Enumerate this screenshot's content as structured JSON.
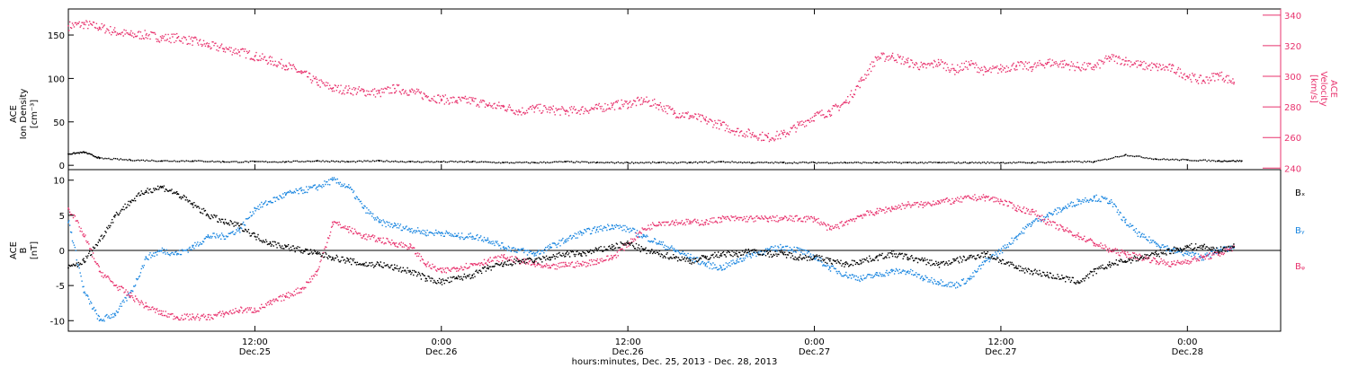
{
  "colors": {
    "black": "#000000",
    "pink": "#e8336e",
    "blue": "#1a86e0"
  },
  "xaxis": {
    "title": "hours:minutes, Dec. 25, 2013 - Dec. 28, 2013",
    "tick_hours": [
      12,
      24,
      36,
      48,
      60,
      72
    ],
    "tick_labels": [
      "12:00",
      "0:00",
      "12:00",
      "0:00",
      "12:00",
      "0:00"
    ],
    "tick_dates": [
      "Dec.25",
      "Dec.26",
      "Dec.26",
      "Dec.27",
      "Dec.27",
      "Dec.28"
    ],
    "range_hours": [
      0.0,
      78.0
    ]
  },
  "chart_data": [
    {
      "type": "scatter",
      "panel": "top",
      "y_left": {
        "label_lines": [
          "ACE",
          "Ion Density",
          "[cm⁻³]"
        ],
        "ticks": [
          0,
          50,
          100,
          150
        ],
        "range": [
          -5,
          180
        ]
      },
      "y_right": {
        "label_lines": [
          "ACE",
          "Velocity",
          "[km/s]"
        ],
        "ticks": [
          240,
          260,
          280,
          300,
          320,
          340
        ],
        "range": [
          239,
          344
        ]
      },
      "series": [
        {
          "axis": "left",
          "color_key": "black",
          "x": [
            0,
            1,
            2,
            4,
            6,
            8,
            10,
            12,
            14,
            16,
            18,
            20,
            22,
            24,
            26,
            28,
            30,
            32,
            34,
            36,
            38,
            40,
            42,
            44,
            46,
            48,
            50,
            52,
            54,
            56,
            58,
            60,
            62,
            64,
            66,
            68,
            70,
            72,
            74,
            75.5
          ],
          "y": [
            13,
            15,
            8,
            6,
            5,
            5,
            4,
            4,
            4,
            5,
            4,
            5,
            4,
            4,
            4,
            3,
            3,
            4,
            3,
            3,
            3,
            3,
            4,
            3,
            3,
            3,
            3,
            3,
            3,
            3,
            3,
            3,
            3,
            4,
            4,
            12,
            7,
            6,
            5,
            5
          ]
        },
        {
          "axis": "right",
          "color_key": "pink",
          "x": [
            0,
            1,
            2,
            3,
            4,
            5,
            6,
            7,
            8,
            9,
            10,
            11,
            12,
            13,
            14,
            15,
            16,
            17,
            18,
            19,
            20,
            21,
            22,
            23,
            24,
            25,
            26,
            27,
            28,
            29,
            30,
            31,
            32,
            33,
            34,
            35,
            36,
            37,
            38,
            39,
            40,
            41,
            42,
            43,
            44,
            45,
            46,
            47,
            48,
            49,
            50,
            51,
            52,
            53,
            54,
            55,
            56,
            57,
            58,
            59,
            60,
            61,
            62,
            63,
            64,
            65,
            66,
            67,
            68,
            69,
            70,
            71,
            72,
            73,
            74,
            75
          ],
          "y": [
            333,
            334,
            332,
            329,
            327,
            327,
            325,
            325,
            323,
            320,
            318,
            316,
            313,
            310,
            307,
            302,
            296,
            292,
            291,
            290,
            289,
            292,
            290,
            287,
            285,
            284,
            284,
            281,
            280,
            277,
            279,
            278,
            277,
            278,
            279,
            281,
            282,
            284,
            281,
            276,
            274,
            271,
            268,
            264,
            262,
            260,
            262,
            268,
            274,
            277,
            283,
            297,
            312,
            313,
            309,
            306,
            309,
            304,
            308,
            303,
            305,
            307,
            306,
            309,
            308,
            306,
            306,
            312,
            310,
            307,
            306,
            305,
            300,
            297,
            301,
            296
          ]
        }
      ]
    },
    {
      "type": "scatter",
      "panel": "bottom",
      "y_left": {
        "label_lines": [
          "ACE",
          "B",
          "[nT]"
        ],
        "ticks": [
          -10,
          -5,
          0,
          5,
          10
        ],
        "range": [
          -11.5,
          11.5
        ]
      },
      "legend": [
        "Bₓ",
        "Bᵧ",
        "Bᵩ"
      ],
      "legend_placement": "right",
      "series": [
        {
          "name": "Bₓ",
          "color_key": "black",
          "x": [
            0,
            1,
            2,
            3,
            4,
            5,
            6,
            7,
            8,
            9,
            10,
            11,
            12,
            13,
            14,
            15,
            16,
            17,
            18,
            19,
            20,
            21,
            22,
            23,
            24,
            25,
            26,
            27,
            28,
            29,
            30,
            31,
            32,
            33,
            34,
            35,
            36,
            37,
            38,
            39,
            40,
            41,
            42,
            43,
            44,
            45,
            46,
            47,
            48,
            49,
            50,
            51,
            52,
            53,
            54,
            55,
            56,
            57,
            58,
            59,
            60,
            61,
            62,
            63,
            64,
            65,
            66,
            67,
            68,
            69,
            70,
            71,
            72,
            73,
            74,
            75
          ],
          "y": [
            -2.5,
            -1.5,
            1.5,
            5,
            7,
            8.5,
            9,
            8,
            6.5,
            5,
            4,
            3.5,
            2,
            1,
            0.5,
            0,
            -0.5,
            -1,
            -1.5,
            -2,
            -2,
            -2.5,
            -3,
            -4,
            -4.5,
            -4,
            -3.5,
            -2.5,
            -2,
            -1.5,
            -1.5,
            -1,
            -0.5,
            -0.5,
            0,
            0.5,
            1,
            0,
            -0.5,
            -1,
            -1.5,
            -1,
            -0.5,
            -0.5,
            0,
            -0.5,
            -0.5,
            -1,
            -1,
            -1.5,
            -2,
            -1.5,
            -1,
            -0.5,
            -1,
            -1.5,
            -2,
            -1.5,
            -1,
            -0.5,
            -1.5,
            -2.5,
            -3,
            -3.5,
            -4,
            -4.5,
            -3,
            -2,
            -1.5,
            -1,
            -0.5,
            0,
            0.5,
            0.5,
            0,
            0.5
          ]
        },
        {
          "name": "Bᵧ",
          "color_key": "blue",
          "x": [
            0,
            1,
            2,
            3,
            4,
            5,
            6,
            7,
            8,
            9,
            10,
            11,
            12,
            13,
            14,
            15,
            16,
            17,
            18,
            19,
            20,
            21,
            22,
            23,
            24,
            25,
            26,
            27,
            28,
            29,
            30,
            31,
            32,
            33,
            34,
            35,
            36,
            37,
            38,
            39,
            40,
            41,
            42,
            43,
            44,
            45,
            46,
            47,
            48,
            49,
            50,
            51,
            52,
            53,
            54,
            55,
            56,
            57,
            58,
            59,
            60,
            61,
            62,
            63,
            64,
            65,
            66,
            67,
            68,
            69,
            70,
            71,
            72,
            73,
            74,
            75
          ],
          "y": [
            4,
            -6,
            -10,
            -9,
            -6,
            -1,
            0,
            -0.5,
            0.5,
            2,
            2,
            3,
            6,
            7,
            8,
            8.5,
            9,
            10,
            9,
            6,
            4,
            3.5,
            3,
            2.5,
            2.5,
            2,
            2,
            1.5,
            0.5,
            0,
            -0.5,
            0.5,
            1.5,
            2.5,
            3,
            3.5,
            3,
            2,
            1,
            0,
            -1,
            -2,
            -2.5,
            -1.5,
            -0.5,
            0,
            0.5,
            0,
            -1,
            -2.5,
            -3.5,
            -4,
            -3.5,
            -3,
            -3,
            -4,
            -4.5,
            -5,
            -4,
            -1.5,
            0,
            2,
            4,
            5,
            6,
            7,
            7.5,
            7,
            4,
            2,
            1,
            0,
            -0.5,
            -1,
            0,
            0.5
          ]
        },
        {
          "name": "Bᵩ",
          "color_key": "pink",
          "x": [
            0,
            1,
            2,
            3,
            4,
            5,
            6,
            7,
            8,
            9,
            10,
            11,
            12,
            13,
            14,
            15,
            16,
            17,
            18,
            19,
            20,
            21,
            22,
            23,
            24,
            25,
            26,
            27,
            28,
            29,
            30,
            31,
            32,
            33,
            34,
            35,
            36,
            37,
            38,
            39,
            40,
            41,
            42,
            43,
            44,
            45,
            46,
            47,
            48,
            49,
            50,
            51,
            52,
            53,
            54,
            55,
            56,
            57,
            58,
            59,
            60,
            61,
            62,
            63,
            64,
            65,
            66,
            67,
            68,
            69,
            70,
            71,
            72,
            73,
            74,
            75
          ],
          "y": [
            6,
            2,
            -3,
            -5,
            -6.5,
            -8,
            -9,
            -9.5,
            -9.5,
            -9.5,
            -9,
            -8.5,
            -8.5,
            -7.5,
            -6.5,
            -5.5,
            -3,
            4,
            3,
            2,
            1.5,
            1,
            0.5,
            -2,
            -3,
            -2.5,
            -2,
            -1.5,
            -1,
            -1.5,
            -2,
            -2.5,
            -2,
            -2,
            -1.5,
            -1,
            1,
            3,
            4,
            4,
            4,
            4,
            4.5,
            4.5,
            4.5,
            4.5,
            4.5,
            4.5,
            4.5,
            3,
            4,
            5,
            5.5,
            6,
            6.5,
            6.5,
            7,
            7,
            7.5,
            7.5,
            7,
            6,
            5.5,
            4,
            3,
            2,
            1,
            0,
            -0.5,
            -1,
            -1.5,
            -2,
            -1.5,
            -1,
            -0.5,
            0.5
          ]
        }
      ]
    }
  ]
}
